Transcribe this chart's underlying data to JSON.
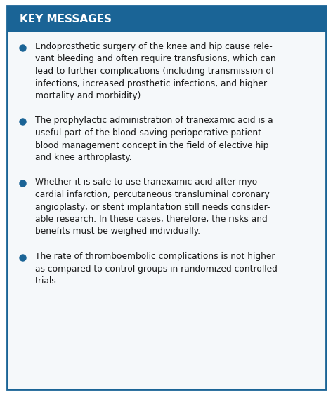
{
  "title": "KEY MESSAGES",
  "title_bg_color": "#1a6496",
  "title_text_color": "#ffffff",
  "box_bg_color": "#f5f8fa",
  "box_border_color": "#1a6496",
  "bullet_color": "#1a6496",
  "text_color": "#1a1a1a",
  "bullets": [
    "Endoprosthetic surgery of the knee and hip cause rele-vant bleeding and often require transfusions, which can lead to further complications (including transmission of infections, increased prosthetic infections, and higher mortality and morbidity).",
    "The prophylactic administration of tranexamic acid is a useful part of the blood-saving perioperative patient blood management concept in the field of elective hip and knee arthroplasty.",
    "Whether it is safe to use tranexamic acid after myo-cardial infarction, percutaneous transluminal coronary angioplasty, or stent implantation still needs consider-able research. In these cases, therefore, the risks and benefits must be weighed individually.",
    "The rate of thromboembolic complications is not higher as compared to control groups in randomized controlled trials."
  ],
  "figsize": [
    4.74,
    5.63
  ],
  "dpi": 100,
  "title_fontsize": 11,
  "body_fontsize": 8.8
}
